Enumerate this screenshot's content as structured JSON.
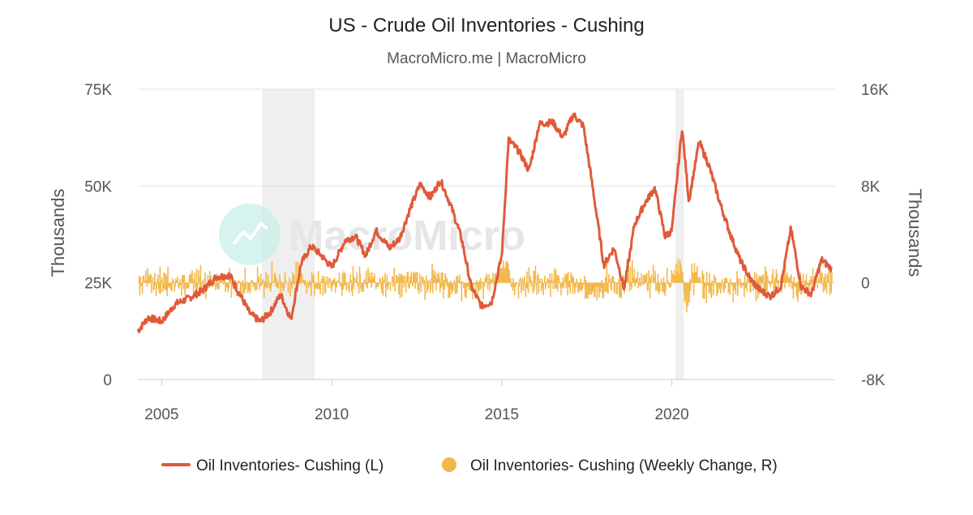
{
  "title": "US - Crude Oil Inventories - Cushing",
  "subtitle": "MacroMicro.me | MacroMicro",
  "watermark_text": "MacroMicro",
  "chart_data": {
    "type": "line",
    "x_ticks": [
      "2005",
      "2010",
      "2015",
      "2020"
    ],
    "y_left": {
      "label": "Thousands",
      "ticks": [
        "0",
        "25K",
        "50K",
        "75K"
      ],
      "range": [
        0,
        75000
      ]
    },
    "y_right": {
      "label": "Thousands",
      "ticks": [
        "-8K",
        "0",
        "8K",
        "16K"
      ],
      "range": [
        -8000,
        16000
      ]
    },
    "x_range": [
      2004.3,
      2024.8
    ],
    "grid": true,
    "legend_position": "bottom",
    "recession_bands": [
      [
        2007.95,
        2009.5
      ],
      [
        2020.1,
        2020.35
      ]
    ],
    "series": [
      {
        "name": "Oil Inventories- Cushing (L)",
        "type": "line",
        "axis": "left",
        "color": "#e05a3a",
        "x": [
          2004.3,
          2004.6,
          2005.0,
          2005.4,
          2005.8,
          2006.2,
          2006.6,
          2007.0,
          2007.3,
          2007.6,
          2007.9,
          2008.2,
          2008.5,
          2008.8,
          2009.1,
          2009.4,
          2009.7,
          2010.0,
          2010.4,
          2010.7,
          2011.0,
          2011.3,
          2011.7,
          2012.0,
          2012.3,
          2012.6,
          2012.9,
          2013.2,
          2013.5,
          2013.8,
          2014.1,
          2014.4,
          2014.7,
          2015.0,
          2015.2,
          2015.5,
          2015.8,
          2016.1,
          2016.5,
          2016.8,
          2017.1,
          2017.4,
          2017.7,
          2018.0,
          2018.3,
          2018.6,
          2018.9,
          2019.2,
          2019.5,
          2019.8,
          2020.0,
          2020.3,
          2020.5,
          2020.8,
          2021.1,
          2021.4,
          2021.7,
          2022.0,
          2022.3,
          2022.6,
          2022.9,
          2023.2,
          2023.5,
          2023.8,
          2024.1,
          2024.4,
          2024.7
        ],
        "values": [
          12500,
          16000,
          15000,
          19500,
          21000,
          23000,
          26500,
          27000,
          22000,
          17000,
          15000,
          17500,
          22000,
          15500,
          30000,
          34500,
          32000,
          29000,
          36000,
          37000,
          32000,
          38500,
          34000,
          36500,
          44000,
          50500,
          47000,
          51500,
          45000,
          37000,
          24000,
          19000,
          20000,
          32000,
          62000,
          59000,
          54000,
          66000,
          66500,
          62500,
          68500,
          65500,
          48000,
          29500,
          34000,
          23500,
          40000,
          45500,
          49500,
          37000,
          38500,
          65000,
          46000,
          61500,
          55000,
          46000,
          38000,
          31000,
          26000,
          23000,
          21500,
          24000,
          39000,
          24000,
          22000,
          31000,
          28500
        ]
      },
      {
        "name": "Oil Inventories- Cushing (Weekly Change, R)",
        "type": "bar",
        "axis": "right",
        "color": "#f2b84b"
      }
    ]
  },
  "legend": {
    "items": [
      {
        "label": "Oil Inventories- Cushing (L)",
        "color": "#e05a3a",
        "marker": "line"
      },
      {
        "label": "Oil Inventories- Cushing (Weekly Change, R)",
        "color": "#f2b84b",
        "marker": "circle"
      }
    ]
  }
}
